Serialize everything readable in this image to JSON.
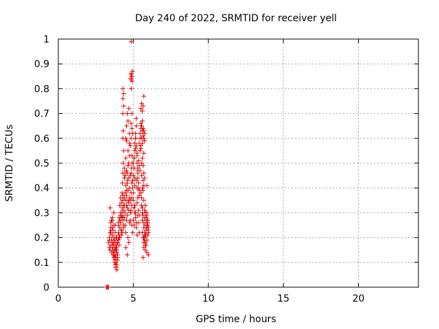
{
  "chart_data": {
    "type": "scatter",
    "title": "Day 240 of 2022, SRMTID for receiver yell",
    "xlabel": "GPS time / hours",
    "ylabel": "SRMTID / TECUs",
    "xlim": [
      0,
      24
    ],
    "ylim": [
      0,
      1
    ],
    "xticks": [
      0,
      5,
      10,
      15,
      20
    ],
    "xtick_labels": [
      "0",
      "5",
      "10",
      "15",
      "20"
    ],
    "yticks": [
      0,
      0.1,
      0.2,
      0.3,
      0.4,
      0.5,
      0.6,
      0.7,
      0.8,
      0.9,
      1
    ],
    "ytick_labels": [
      "0",
      "0.1",
      "0.2",
      "0.3",
      "0.4",
      "0.5",
      "0.6",
      "0.7",
      "0.8",
      "0.9",
      "1"
    ],
    "grid": true,
    "marker": "+",
    "color": "#e00000",
    "series": [
      {
        "name": "yell",
        "x": [
          3.2,
          3.25,
          3.3,
          3.35,
          3.35,
          3.4,
          3.4,
          3.45,
          3.45,
          3.5,
          3.5,
          3.55,
          3.55,
          3.6,
          3.6,
          3.65,
          3.65,
          3.7,
          3.7,
          3.75,
          3.75,
          3.8,
          3.8,
          3.85,
          3.85,
          3.9,
          3.9,
          3.95,
          3.95,
          3.5,
          3.6,
          3.7,
          3.8,
          3.9,
          3.45,
          3.55,
          3.65,
          3.75,
          3.85,
          3.95,
          3.5,
          3.6,
          3.7,
          3.8,
          3.9,
          3.4,
          3.6,
          3.8,
          3.7,
          3.75,
          3.85,
          3.9,
          3.95,
          3.9,
          3.85,
          3.8,
          3.7,
          3.6,
          3.5,
          3.55,
          3.65,
          3.7,
          3.75,
          3.8,
          3.85,
          3.9,
          3.95,
          4.0,
          4.0,
          4.05,
          4.05,
          4.1,
          4.1,
          4.15,
          4.15,
          4.2,
          4.2,
          4.25,
          4.25,
          4.3,
          4.3,
          4.35,
          4.35,
          4.0,
          4.05,
          4.1,
          4.15,
          4.2,
          4.25,
          4.3,
          4.35,
          4.1,
          4.2,
          4.3,
          4.0,
          4.15,
          4.25,
          4.35,
          4.05,
          4.2,
          4.3,
          4.25,
          4.28,
          4.3,
          4.32,
          4.35,
          4.3,
          4.33,
          4.3,
          4.35,
          4.3,
          4.35,
          4.3,
          4.4,
          4.4,
          4.45,
          4.45,
          4.5,
          4.5,
          4.55,
          4.55,
          4.6,
          4.6,
          4.65,
          4.65,
          4.7,
          4.7,
          4.75,
          4.75,
          4.4,
          4.45,
          4.5,
          4.55,
          4.6,
          4.65,
          4.7,
          4.75,
          4.4,
          4.5,
          4.6,
          4.7,
          4.45,
          4.55,
          4.65,
          4.75,
          4.5,
          4.6,
          4.7,
          4.4,
          4.45,
          4.55,
          4.6,
          4.5,
          4.55,
          4.6,
          4.65,
          4.7,
          4.75,
          4.55,
          4.65,
          4.75,
          4.8,
          4.85,
          4.9,
          4.95,
          4.8,
          4.85,
          4.9,
          4.95,
          4.8,
          4.88,
          4.92,
          4.8,
          4.85,
          4.9,
          4.95,
          4.82,
          4.88,
          4.9,
          4.86,
          4.84,
          4.9,
          4.86,
          4.88,
          4.92,
          4.85,
          4.9,
          4.9,
          4.85,
          4.95,
          4.8,
          4.85,
          4.9,
          4.95,
          5.0,
          5.0,
          5.05,
          5.05,
          5.1,
          5.1,
          5.15,
          5.15,
          5.2,
          5.2,
          5.25,
          5.25,
          5.3,
          5.3,
          5.35,
          5.35,
          5.4,
          5.4,
          5.0,
          5.05,
          5.1,
          5.15,
          5.2,
          5.25,
          5.3,
          5.35,
          5.4,
          5.0,
          5.1,
          5.2,
          5.3,
          5.4,
          5.05,
          5.15,
          5.25,
          5.35,
          5.0,
          5.1,
          5.2,
          5.3,
          5.4,
          5.05,
          5.15,
          5.25,
          5.35,
          5.2,
          5.3,
          5.1,
          5.25,
          5.15,
          5.4,
          5.45,
          5.45,
          5.5,
          5.5,
          5.55,
          5.55,
          5.6,
          5.6,
          5.65,
          5.65,
          5.7,
          5.7,
          5.75,
          5.75,
          5.5,
          5.55,
          5.6,
          5.65,
          5.7,
          5.45,
          5.5,
          5.55,
          5.6,
          5.65,
          5.7,
          5.5,
          5.6,
          5.45,
          5.55,
          5.65,
          5.7,
          5.6,
          5.5,
          5.55,
          5.65,
          5.6,
          5.7,
          5.6,
          5.55,
          5.65,
          5.6,
          5.7,
          5.75,
          5.6,
          5.65,
          5.7,
          5.75,
          5.8,
          5.85,
          5.9,
          5.95,
          6.0,
          5.7,
          5.75,
          5.8,
          5.85,
          5.9,
          5.95,
          6.0,
          5.75,
          5.8,
          5.85,
          5.9,
          5.95,
          6.0,
          5.7,
          5.8,
          5.9,
          6.0,
          5.75,
          5.85,
          5.95,
          5.65,
          5.7,
          5.75,
          5.8,
          5.85,
          5.9,
          5.95,
          5.7,
          5.8,
          5.9,
          5.85,
          5.95,
          5.8,
          5.9,
          5.85
        ],
        "y": [
          0.0,
          0.0,
          0.0,
          0.0,
          0.18,
          0.16,
          0.2,
          0.15,
          0.22,
          0.17,
          0.24,
          0.14,
          0.19,
          0.21,
          0.16,
          0.13,
          0.18,
          0.12,
          0.17,
          0.1,
          0.15,
          0.08,
          0.13,
          0.11,
          0.16,
          0.09,
          0.14,
          0.12,
          0.18,
          0.26,
          0.28,
          0.3,
          0.25,
          0.2,
          0.32,
          0.27,
          0.23,
          0.19,
          0.15,
          0.11,
          0.22,
          0.24,
          0.2,
          0.18,
          0.07,
          0.19,
          0.17,
          0.16,
          0.14,
          0.12,
          0.1,
          0.08,
          0.13,
          0.17,
          0.2,
          0.22,
          0.25,
          0.27,
          0.23,
          0.19,
          0.15,
          0.13,
          0.11,
          0.09,
          0.12,
          0.15,
          0.18,
          0.22,
          0.25,
          0.28,
          0.2,
          0.24,
          0.27,
          0.3,
          0.26,
          0.23,
          0.21,
          0.29,
          0.32,
          0.35,
          0.27,
          0.24,
          0.31,
          0.19,
          0.17,
          0.33,
          0.36,
          0.34,
          0.3,
          0.28,
          0.25,
          0.2,
          0.23,
          0.37,
          0.26,
          0.29,
          0.22,
          0.33,
          0.21,
          0.28,
          0.35,
          0.38,
          0.42,
          0.46,
          0.5,
          0.55,
          0.6,
          0.63,
          0.7,
          0.73,
          0.76,
          0.78,
          0.8,
          0.33,
          0.36,
          0.3,
          0.38,
          0.35,
          0.41,
          0.33,
          0.37,
          0.29,
          0.43,
          0.35,
          0.39,
          0.31,
          0.44,
          0.36,
          0.4,
          0.28,
          0.25,
          0.22,
          0.27,
          0.32,
          0.2,
          0.34,
          0.26,
          0.48,
          0.52,
          0.46,
          0.5,
          0.45,
          0.47,
          0.49,
          0.53,
          0.16,
          0.13,
          0.18,
          0.44,
          0.46,
          0.39,
          0.42,
          0.6,
          0.65,
          0.7,
          0.67,
          0.72,
          0.62,
          0.59,
          0.55,
          0.58,
          0.84,
          0.86,
          0.85,
          0.87,
          0.57,
          0.6,
          0.53,
          0.62,
          0.45,
          0.48,
          0.5,
          0.35,
          0.38,
          0.42,
          0.4,
          0.3,
          0.33,
          0.36,
          0.99,
          0.86,
          0.85,
          0.8,
          0.84,
          0.83,
          0.66,
          0.64,
          0.7,
          0.46,
          0.43,
          0.27,
          0.31,
          0.25,
          0.22,
          0.45,
          0.5,
          0.48,
          0.52,
          0.55,
          0.58,
          0.62,
          0.6,
          0.65,
          0.68,
          0.5,
          0.53,
          0.47,
          0.44,
          0.4,
          0.42,
          0.37,
          0.39,
          0.35,
          0.32,
          0.3,
          0.28,
          0.26,
          0.34,
          0.36,
          0.31,
          0.29,
          0.38,
          0.41,
          0.43,
          0.46,
          0.49,
          0.52,
          0.56,
          0.54,
          0.51,
          0.27,
          0.33,
          0.24,
          0.29,
          0.22,
          0.25,
          0.3,
          0.21,
          0.26,
          0.57,
          0.48,
          0.44,
          0.4,
          0.6,
          0.58,
          0.6,
          0.62,
          0.64,
          0.66,
          0.65,
          0.6,
          0.63,
          0.67,
          0.64,
          0.61,
          0.6,
          0.63,
          0.59,
          0.62,
          0.72,
          0.74,
          0.71,
          0.73,
          0.77,
          0.55,
          0.57,
          0.5,
          0.52,
          0.49,
          0.54,
          0.56,
          0.58,
          0.47,
          0.45,
          0.43,
          0.46,
          0.4,
          0.38,
          0.36,
          0.39,
          0.32,
          0.35,
          0.3,
          0.33,
          0.29,
          0.27,
          0.41,
          0.44,
          0.22,
          0.2,
          0.24,
          0.19,
          0.21,
          0.23,
          0.25,
          0.27,
          0.22,
          0.26,
          0.28,
          0.3,
          0.27,
          0.29,
          0.25,
          0.24,
          0.2,
          0.18,
          0.17,
          0.19,
          0.21,
          0.23,
          0.16,
          0.15,
          0.14,
          0.13,
          0.31,
          0.28,
          0.26,
          0.12,
          0.18,
          0.22,
          0.25,
          0.28,
          0.3,
          0.26,
          0.2,
          0.17,
          0.24,
          0.21,
          0.27,
          0.33,
          0.41,
          0.28
        ]
      }
    ]
  }
}
